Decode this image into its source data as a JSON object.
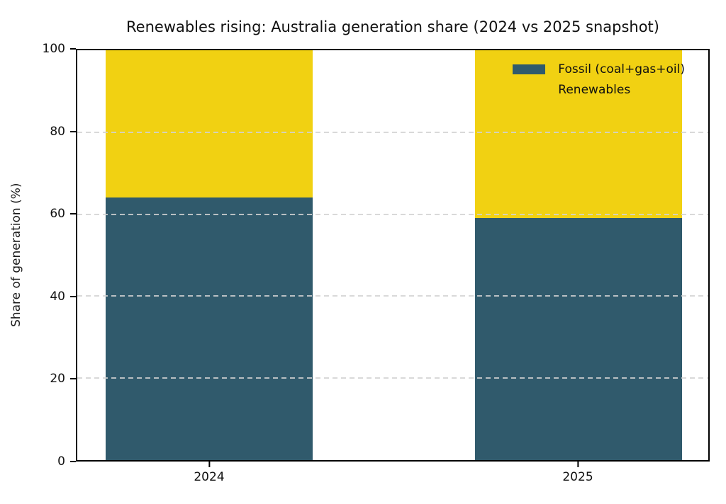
{
  "chart_data": {
    "type": "bar",
    "stacked": true,
    "title": "Renewables rising: Australia generation share (2024 vs 2025 snapshot)",
    "xlabel": "",
    "ylabel": "Share of generation (%)",
    "categories": [
      "2024",
      "2025"
    ],
    "series": [
      {
        "name": "Fossil (coal+gas+oil)",
        "values": [
          64,
          59
        ],
        "color": "#305A6C"
      },
      {
        "name": "Renewables",
        "values": [
          36,
          41
        ],
        "color": "#F1D112"
      }
    ],
    "ylim": [
      0,
      100
    ],
    "yticks": [
      0,
      20,
      40,
      60,
      80,
      100
    ],
    "grid": true,
    "grid_style": "dashed",
    "legend_position": "upper right",
    "legend_frame": false
  },
  "colors": {
    "fossil": "#305A6C",
    "renewables": "#F1D112",
    "gridline": "#D2D2D2",
    "axis": "#000000",
    "text": "#111111",
    "background": "#FFFFFF"
  }
}
